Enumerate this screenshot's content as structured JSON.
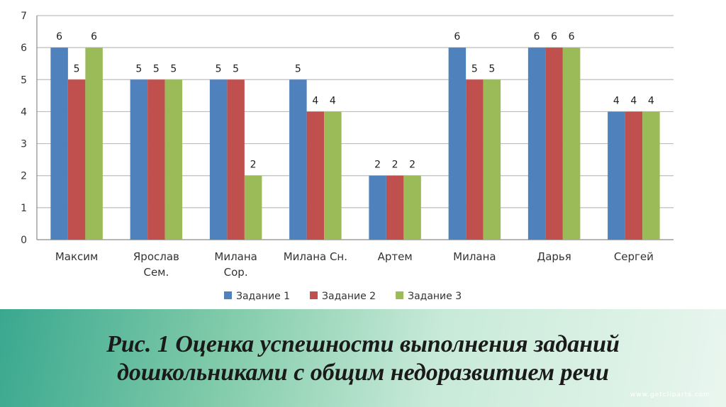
{
  "chart_data": {
    "type": "bar",
    "categories": [
      [
        "Максим"
      ],
      [
        "Ярослав",
        "Сем."
      ],
      [
        "Милана",
        "Сор."
      ],
      [
        "Милана Сн."
      ],
      [
        "Артем"
      ],
      [
        "Милана"
      ],
      [
        "Дарья"
      ],
      [
        "Сергей"
      ]
    ],
    "series": [
      {
        "name": "Задание 1",
        "color": "#4f81bd",
        "values": [
          6,
          5,
          5,
          5,
          2,
          6,
          6,
          4
        ]
      },
      {
        "name": "Задание 2",
        "color": "#c0504d",
        "values": [
          5,
          5,
          5,
          4,
          2,
          5,
          6,
          4
        ]
      },
      {
        "name": "Задание 3",
        "color": "#9bbb59",
        "values": [
          6,
          5,
          2,
          4,
          2,
          5,
          6,
          4
        ]
      }
    ],
    "ylim": [
      0,
      7
    ],
    "yticks": [
      0,
      1,
      2,
      3,
      4,
      5,
      6,
      7
    ],
    "grid": true,
    "legend": "bottom",
    "data_labels": [
      [
        "6",
        "5",
        "6"
      ],
      [
        "5",
        "5",
        "5"
      ],
      [
        "5",
        "5",
        "2"
      ],
      [
        "5",
        "4",
        "4"
      ],
      [
        "2",
        "2",
        "2"
      ],
      [
        "6",
        "5",
        "5"
      ],
      [
        "6",
        "6",
        "6"
      ],
      [
        "4",
        "4",
        "4"
      ]
    ]
  },
  "caption": {
    "line1": "Рис. 1 Оценка успешности выполнения заданий",
    "line2": "дошкольниками с общим недоразвитием речи"
  },
  "watermark": "www.getcliparts.com"
}
